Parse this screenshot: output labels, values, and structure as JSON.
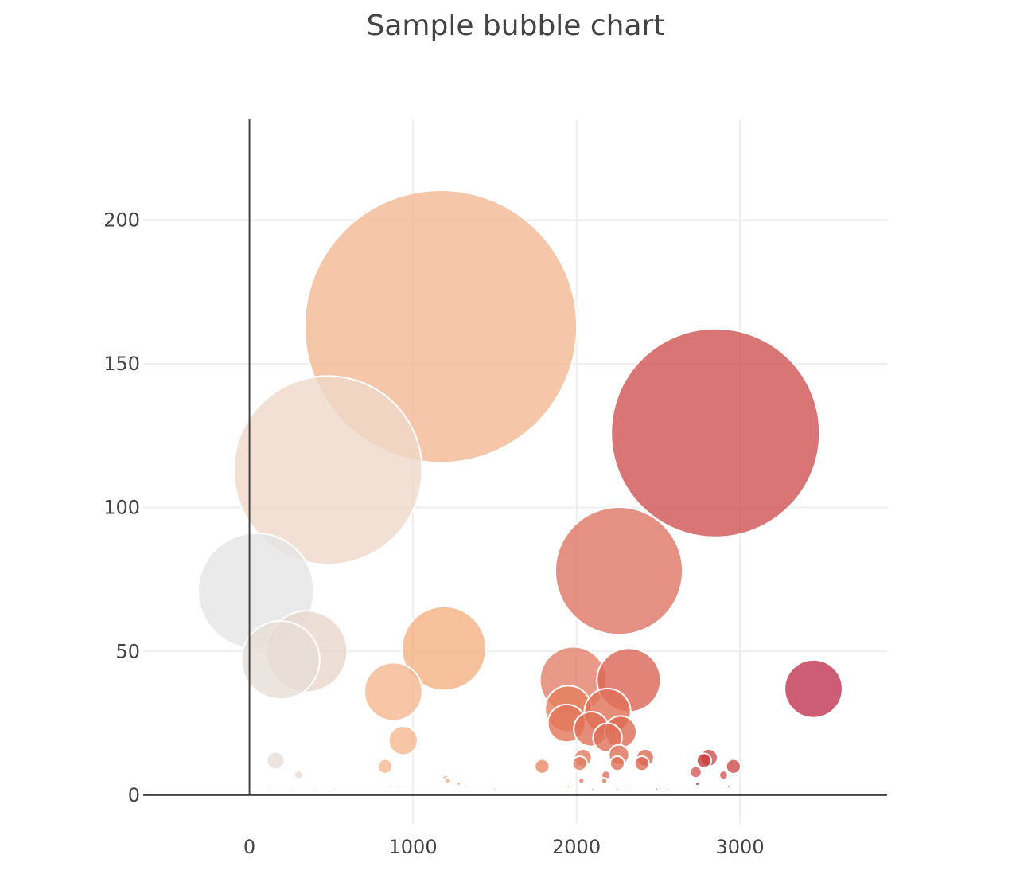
{
  "chart_data": {
    "type": "scatter",
    "title": "Sample bubble chart",
    "xlabel": "",
    "ylabel": "",
    "xlim": [
      -650,
      3900
    ],
    "ylim": [
      -10,
      235
    ],
    "x_ticks": [
      0,
      1000,
      2000,
      3000
    ],
    "x_tick_labels": [
      "0",
      "1000",
      "2000",
      "3000"
    ],
    "y_ticks": [
      0,
      50,
      100,
      150,
      200
    ],
    "y_tick_labels": [
      "0",
      "50",
      "100",
      "150",
      "200"
    ],
    "grid": true,
    "legend": "none",
    "colorscale": [
      "#e5e5e5",
      "#f2c8a8",
      "#f4a77d",
      "#e07a64",
      "#d65f5f",
      "#c43b50"
    ],
    "points": [
      {
        "x": 40,
        "y": 71,
        "size": 40,
        "color": "#e5e5e5"
      },
      {
        "x": 480,
        "y": 113,
        "size": 65,
        "color": "#eed8c8"
      },
      {
        "x": 1170,
        "y": 163,
        "size": 94,
        "color": "#f4b893"
      },
      {
        "x": 2850,
        "y": 126,
        "size": 72,
        "color": "#cf5252"
      },
      {
        "x": 2260,
        "y": 78,
        "size": 44,
        "color": "#dd7565"
      },
      {
        "x": 3450,
        "y": 37,
        "size": 20,
        "color": "#c03550"
      },
      {
        "x": 350,
        "y": 50,
        "size": 28,
        "color": "#e8d7ca"
      },
      {
        "x": 190,
        "y": 47,
        "size": 27,
        "color": "#e6ddd7"
      },
      {
        "x": 1190,
        "y": 51,
        "size": 29,
        "color": "#f4b082"
      },
      {
        "x": 880,
        "y": 36,
        "size": 20,
        "color": "#f4b890"
      },
      {
        "x": 940,
        "y": 19,
        "size": 10,
        "color": "#f4b890"
      },
      {
        "x": 1980,
        "y": 40,
        "size": 23,
        "color": "#e2806a"
      },
      {
        "x": 2320,
        "y": 40,
        "size": 22,
        "color": "#d96555"
      },
      {
        "x": 1950,
        "y": 30,
        "size": 16,
        "color": "#e4805e"
      },
      {
        "x": 2190,
        "y": 29,
        "size": 16,
        "color": "#e07058"
      },
      {
        "x": 1940,
        "y": 25,
        "size": 13,
        "color": "#e2745a"
      },
      {
        "x": 2090,
        "y": 23,
        "size": 12,
        "color": "#e07058"
      },
      {
        "x": 2270,
        "y": 22,
        "size": 11,
        "color": "#dc6a55"
      },
      {
        "x": 2190,
        "y": 20,
        "size": 10,
        "color": "#e07058"
      },
      {
        "x": 2260,
        "y": 14,
        "size": 7,
        "color": "#e07058"
      },
      {
        "x": 2040,
        "y": 13,
        "size": 6,
        "color": "#e47a62"
      },
      {
        "x": 2420,
        "y": 13,
        "size": 6,
        "color": "#dc6a55"
      },
      {
        "x": 2400,
        "y": 11,
        "size": 5,
        "color": "#dc6a55"
      },
      {
        "x": 2020,
        "y": 11,
        "size": 5,
        "color": "#e47a62"
      },
      {
        "x": 2250,
        "y": 11,
        "size": 5,
        "color": "#e07058"
      },
      {
        "x": 1790,
        "y": 10,
        "size": 5,
        "color": "#e88a68"
      },
      {
        "x": 160,
        "y": 12,
        "size": 6,
        "color": "#e6ddd7"
      },
      {
        "x": 830,
        "y": 10,
        "size": 5,
        "color": "#f4b890"
      },
      {
        "x": 300,
        "y": 7,
        "size": 3,
        "color": "#e6ddd7"
      },
      {
        "x": 2810,
        "y": 13,
        "size": 6,
        "color": "#d04b4b"
      },
      {
        "x": 2780,
        "y": 12,
        "size": 5,
        "color": "#c83c3c"
      },
      {
        "x": 2960,
        "y": 10,
        "size": 5,
        "color": "#cc4a4a"
      },
      {
        "x": 2730,
        "y": 8,
        "size": 4,
        "color": "#d45a5a"
      },
      {
        "x": 2900,
        "y": 7,
        "size": 3,
        "color": "#d45a5a"
      },
      {
        "x": 2180,
        "y": 7,
        "size": 3,
        "color": "#e07058"
      },
      {
        "x": 1200,
        "y": 6,
        "size": 2,
        "color": "#f4b082"
      },
      {
        "x": 1210,
        "y": 5,
        "size": 2,
        "color": "#f4b082"
      },
      {
        "x": 2170,
        "y": 5,
        "size": 2,
        "color": "#e07058"
      },
      {
        "x": 2030,
        "y": 5,
        "size": 2,
        "color": "#e47a62"
      },
      {
        "x": 1280,
        "y": 4,
        "size": 1.5,
        "color": "#f4b082"
      },
      {
        "x": 2740,
        "y": 4,
        "size": 1.5,
        "color": "#c83c3c"
      },
      {
        "x": 1320,
        "y": 3,
        "size": 1,
        "color": "#f4b082"
      },
      {
        "x": 2930,
        "y": 3,
        "size": 1,
        "color": "#c83c3c"
      },
      {
        "x": 860,
        "y": 3,
        "size": 1,
        "color": "#f4b890"
      },
      {
        "x": 910,
        "y": 3,
        "size": 1,
        "color": "#f4b890"
      },
      {
        "x": 1950,
        "y": 3,
        "size": 1,
        "color": "#e4805e"
      },
      {
        "x": 2320,
        "y": 3,
        "size": 1,
        "color": "#d96555"
      },
      {
        "x": 1500,
        "y": 2,
        "size": 1,
        "color": "#f4b082"
      },
      {
        "x": 2100,
        "y": 2,
        "size": 1,
        "color": "#e07058"
      },
      {
        "x": 2250,
        "y": 2,
        "size": 1,
        "color": "#e07058"
      },
      {
        "x": 2490,
        "y": 2,
        "size": 1,
        "color": "#dc6a55"
      },
      {
        "x": 2560,
        "y": 2,
        "size": 1,
        "color": "#dc6a55"
      },
      {
        "x": 120,
        "y": 2,
        "size": 1,
        "color": "#e6ddd7"
      },
      {
        "x": 260,
        "y": 2,
        "size": 1,
        "color": "#e6ddd7"
      },
      {
        "x": 400,
        "y": 2,
        "size": 1,
        "color": "#e6ddd7"
      },
      {
        "x": 520,
        "y": 2,
        "size": 1,
        "color": "#e6ddd7"
      }
    ]
  }
}
